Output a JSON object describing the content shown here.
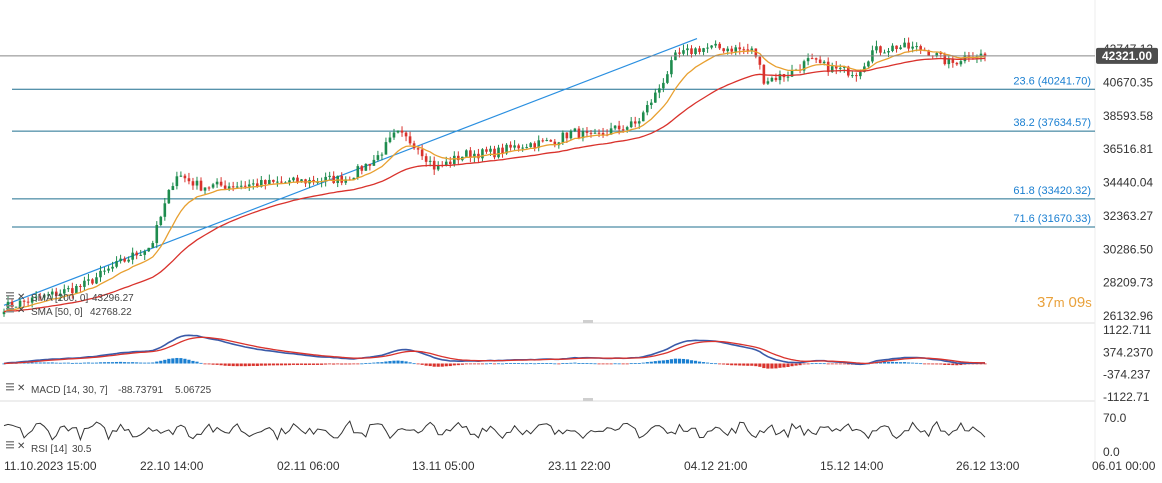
{
  "chart_data": {
    "type": "candlestick",
    "instrument_price_axis": {
      "ticks": [
        "42747.12",
        "40670.35",
        "38593.58",
        "36516.81",
        "34440.04",
        "32363.27",
        "30286.50",
        "28209.73",
        "26132.96"
      ],
      "ymin": 26132.96,
      "ymax": 42747.12
    },
    "current_price": "42321.00",
    "current_price_value": 42321,
    "countdown": {
      "minutes": "37",
      "m_unit": "m",
      "seconds": "09",
      "s_unit": "s"
    },
    "x_ticks": [
      "11.10.2023 15:00",
      "22.10 14:00",
      "02.11 06:00",
      "13.11 05:00",
      "23.11 22:00",
      "04.12 21:00",
      "15.12 14:00",
      "26.12 13:00",
      "06.01 00:00"
    ],
    "fibonacci_levels": [
      {
        "label": "23.6 (40241.70)",
        "value": 40241.7
      },
      {
        "label": "38.2 (37634.57)",
        "value": 37634.57
      },
      {
        "label": "61.8 (33420.32)",
        "value": 33420.32
      },
      {
        "label": "71.6 (31670.33)",
        "value": 31670.33
      }
    ],
    "price_anchors": [
      [
        0,
        26700
      ],
      [
        0.04,
        27300
      ],
      [
        0.08,
        28000
      ],
      [
        0.12,
        29500
      ],
      [
        0.15,
        30500
      ],
      [
        0.175,
        35000
      ],
      [
        0.2,
        34200
      ],
      [
        0.25,
        34300
      ],
      [
        0.3,
        34500
      ],
      [
        0.35,
        34700
      ],
      [
        0.38,
        36000
      ],
      [
        0.4,
        37500
      ],
      [
        0.42,
        36800
      ],
      [
        0.44,
        35300
      ],
      [
        0.47,
        36200
      ],
      [
        0.5,
        36300
      ],
      [
        0.53,
        36800
      ],
      [
        0.56,
        37000
      ],
      [
        0.58,
        37600
      ],
      [
        0.6,
        37200
      ],
      [
        0.62,
        37700
      ],
      [
        0.645,
        38100
      ],
      [
        0.665,
        40000
      ],
      [
        0.685,
        42300
      ],
      [
        0.71,
        42800
      ],
      [
        0.74,
        42800
      ],
      [
        0.765,
        42600
      ],
      [
        0.775,
        40800
      ],
      [
        0.8,
        41200
      ],
      [
        0.82,
        42000
      ],
      [
        0.845,
        41500
      ],
      [
        0.87,
        41300
      ],
      [
        0.885,
        42600
      ],
      [
        0.91,
        42900
      ],
      [
        0.94,
        42700
      ],
      [
        0.965,
        41800
      ],
      [
        0.985,
        42500
      ],
      [
        1,
        42321
      ]
    ],
    "indicators": {
      "sma200": {
        "label": "SMA [200, 0]",
        "value": "43296.27",
        "color": "#d9322c"
      },
      "sma50": {
        "label": "SMA [50, 0]",
        "value": "42768.22",
        "color": "#e8a030"
      },
      "macd": {
        "label": "MACD [14, 30, 7]",
        "value1": "-88.73791",
        "value2": "5.06725",
        "ticks": [
          "1122.711",
          "374.2370",
          "-374.237",
          "-1122.71"
        ],
        "ymin": -1122.71,
        "ymax": 1122.711
      },
      "rsi": {
        "label": "RSI [14]",
        "value": "30.5",
        "ticks": [
          "70.0",
          "0.0"
        ],
        "ymin": 0,
        "ymax": 100
      }
    },
    "colors": {
      "up": "#1e8c4e",
      "down": "#d9322c",
      "trendline": "#2a8fe0",
      "fib": "#1f6f8f",
      "current_price_bg": "#4d4d4d",
      "macd_line": "#3a5aa8",
      "signal_line": "#d9322c",
      "hist_pos": "#1a7fd1",
      "hist_neg": "#d9322c",
      "rsi_line": "#333333"
    }
  }
}
